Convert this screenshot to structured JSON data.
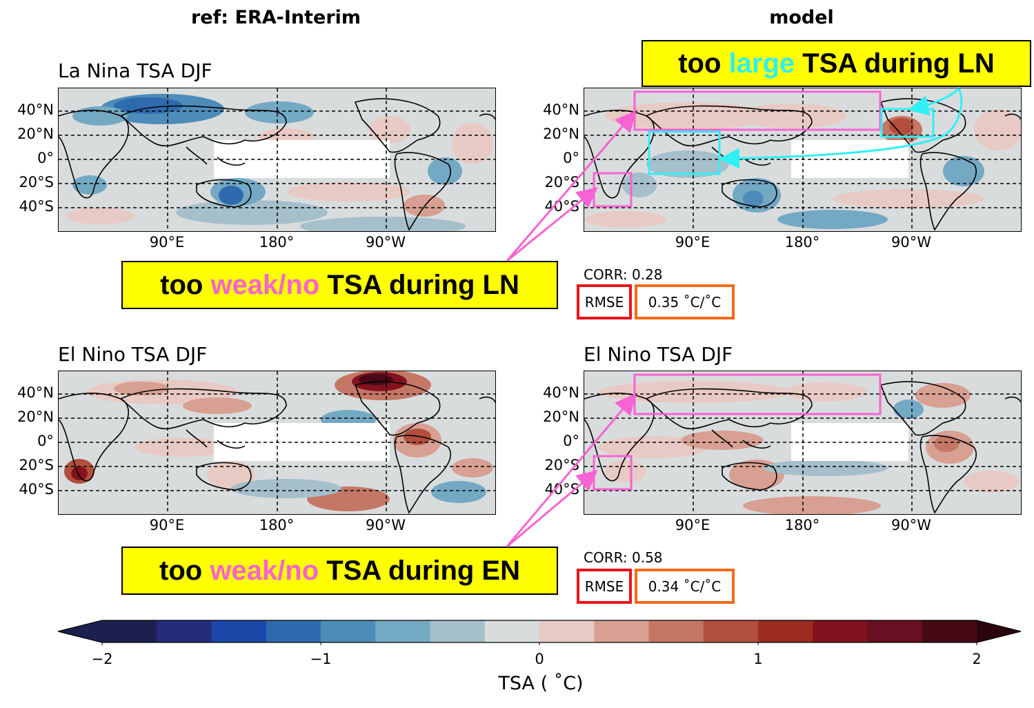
{
  "columns": {
    "left": "ref: ERA-Interim",
    "right": "model"
  },
  "maps": [
    {
      "id": "ln-ref",
      "title": "La Nina TSA DJF"
    },
    {
      "id": "ln-model",
      "title": ""
    },
    {
      "id": "en-ref",
      "title": "El Nino TSA DJF"
    },
    {
      "id": "en-model",
      "title": "El Nino TSA DJF"
    }
  ],
  "lat_labels": [
    "40°N",
    "20°N",
    "0°",
    "20°S",
    "40°S"
  ],
  "lon_labels": [
    "90°E",
    "180°",
    "90°W"
  ],
  "stats": {
    "ln": {
      "corr": "CORR: 0.28",
      "rmse_label": "RMSE",
      "rmse_value": "0.35 ˚C/˚C"
    },
    "en": {
      "corr": "CORR: 0.58",
      "rmse_label": "RMSE",
      "rmse_value": "0.34 ˚C/˚C"
    }
  },
  "callouts": {
    "top_right": {
      "pre": "too ",
      "hl": "large",
      "post": " TSA during LN"
    },
    "ln": {
      "pre": "too ",
      "hl": "weak/no",
      "post": " TSA during LN"
    },
    "en": {
      "pre": "too ",
      "hl": "weak/no",
      "post": " TSA during EN"
    }
  },
  "colorbar": {
    "ticks": [
      "−2",
      "−1",
      "0",
      "1",
      "2"
    ],
    "label": "TSA ( ˚C)",
    "range": [
      -2,
      2
    ],
    "colors": [
      "#1d1f4e",
      "#232b7b",
      "#1a47a8",
      "#2f6aae",
      "#4d8cb8",
      "#74a9c4",
      "#a5bfcb",
      "#d9dcdd",
      "#e8cac4",
      "#d7a093",
      "#c57766",
      "#b24e3c",
      "#9c2c22",
      "#83121f",
      "#661022",
      "#450a16"
    ]
  },
  "highlight_colors": {
    "pink": "#f763d2",
    "cyan": "#2ff0f5",
    "red": "#e8141b",
    "orange": "#f56a14"
  }
}
